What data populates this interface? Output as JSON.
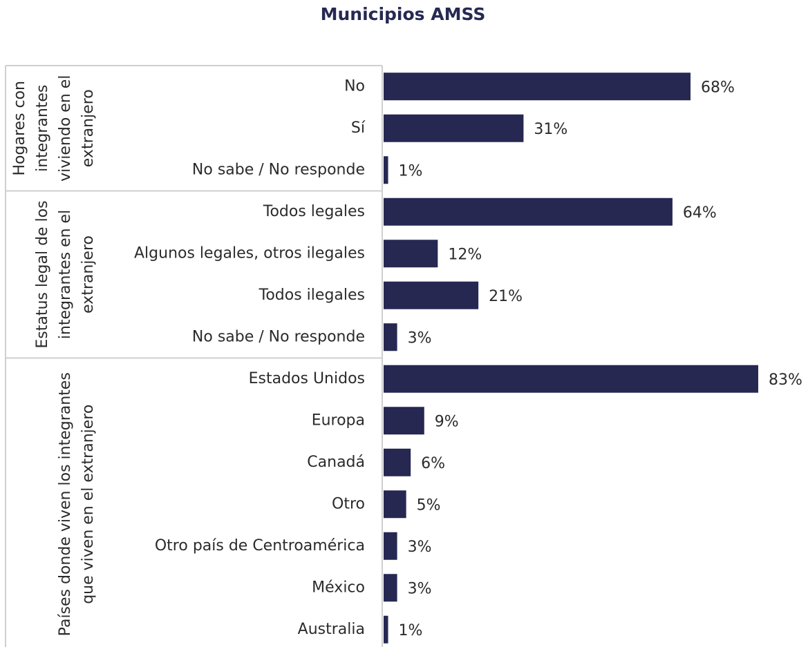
{
  "chart_data": {
    "type": "bar",
    "orientation": "horizontal",
    "title": "Municipios AMSS",
    "color": "#262852",
    "groups": [
      {
        "label": "Hogares con integrantes viviendo en el extranjero",
        "categories": [
          "No",
          "Sí",
          "No sabe / No responde"
        ],
        "values": [
          68,
          31,
          1
        ],
        "value_labels": [
          "68%",
          "31%",
          "1%"
        ]
      },
      {
        "label": "Estatus legal de los integrantes en el extranjero",
        "categories": [
          "Todos legales",
          "Algunos legales, otros ilegales",
          "Todos ilegales",
          "No sabe / No responde"
        ],
        "values": [
          64,
          12,
          21,
          3
        ],
        "value_labels": [
          "64%",
          "12%",
          "21%",
          "3%"
        ]
      },
      {
        "label": "Países donde viven los integrantes que viven en el extranjero",
        "categories": [
          "Estados Unidos",
          "Europa",
          "Canadá",
          "Otro",
          "Otro país de Centroamérica",
          "México",
          "Australia"
        ],
        "values": [
          83,
          9,
          6,
          5,
          3,
          3,
          1
        ],
        "value_labels": [
          "83%",
          "9%",
          "6%",
          "5%",
          "3%",
          "3%",
          "1%"
        ]
      }
    ]
  }
}
